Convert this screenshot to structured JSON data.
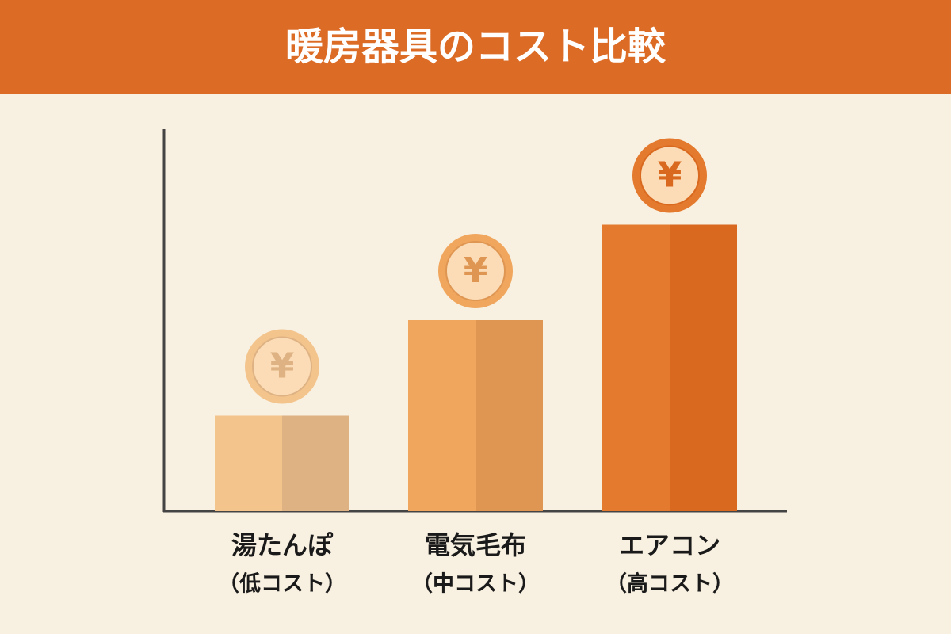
{
  "chart_data": {
    "type": "bar",
    "title": "暖房器具のコスト比較",
    "categories": [
      "湯たんぽ",
      "電気毛布",
      "エアコン"
    ],
    "sublabels": [
      "（低コスト）",
      "（中コスト）",
      "（高コスト）"
    ],
    "values": [
      1,
      2,
      3
    ],
    "colors": [
      "#f4c48d",
      "#f0a65d",
      "#e47a2d"
    ],
    "shade_colors": [
      "#deb283",
      "#df9652",
      "#d9691f"
    ],
    "coin_symbol": "¥",
    "ylim": [
      0,
      4
    ],
    "grid": false
  }
}
